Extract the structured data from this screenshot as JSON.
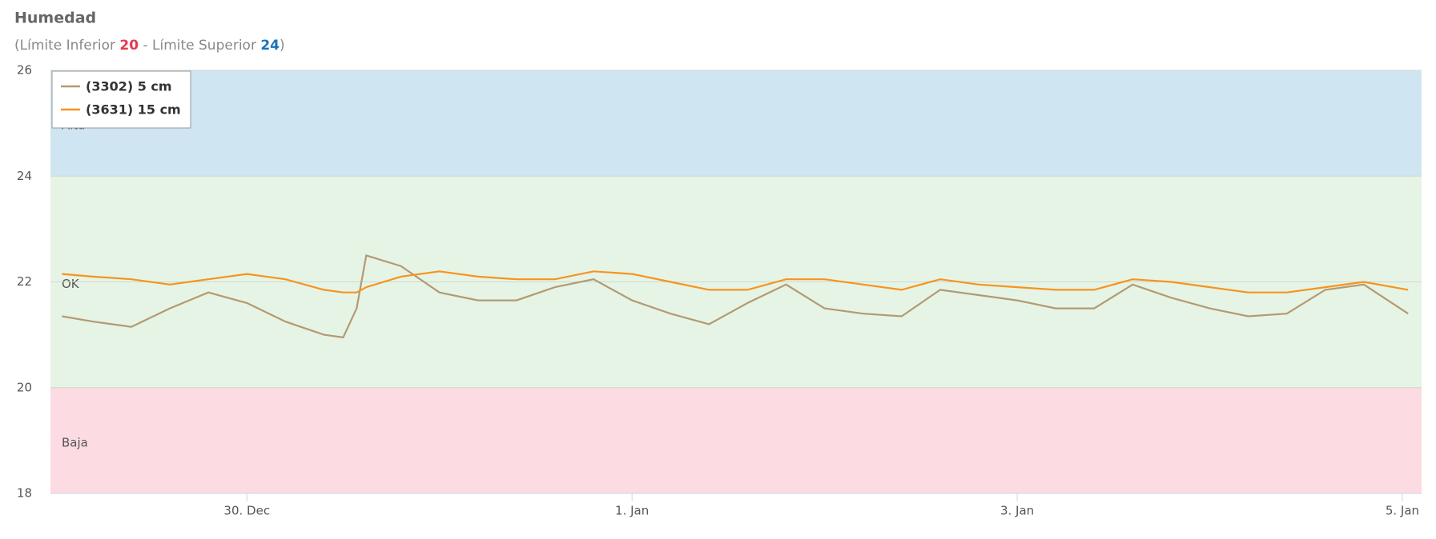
{
  "chart_data": {
    "type": "line",
    "title": "Humedad",
    "subtitle": {
      "prefix": "(Límite Inferior",
      "lower": 20,
      "separator": "- Límite Superior",
      "upper": 24,
      "suffix": ")",
      "lower_color": "#e8384f",
      "upper_color": "#1a73b8"
    },
    "x": [
      -0.96,
      -0.8,
      -0.6,
      -0.4,
      -0.2,
      0,
      0.2,
      0.4,
      0.5,
      0.57,
      0.62,
      0.8,
      1.0,
      1.2,
      1.4,
      1.6,
      1.8,
      2.0,
      2.2,
      2.4,
      2.6,
      2.8,
      3.0,
      3.2,
      3.4,
      3.6,
      3.8,
      4.0,
      4.2,
      4.4,
      4.6,
      4.8,
      5.0,
      5.2,
      5.4,
      5.6,
      5.8,
      6.03
    ],
    "series": [
      {
        "name": "(3302) 5 cm",
        "color": "#b39a72",
        "values": [
          21.35,
          21.25,
          21.15,
          21.5,
          21.8,
          21.6,
          21.25,
          21.0,
          20.95,
          21.5,
          22.5,
          22.3,
          21.8,
          21.65,
          21.65,
          21.9,
          22.05,
          21.65,
          21.4,
          21.2,
          21.6,
          21.95,
          21.5,
          21.4,
          21.35,
          21.85,
          21.75,
          21.65,
          21.5,
          21.5,
          21.95,
          21.7,
          21.5,
          21.35,
          21.4,
          21.85,
          21.95,
          21.4
        ]
      },
      {
        "name": "(3631) 15 cm",
        "color": "#f7931e",
        "values": [
          22.15,
          22.1,
          22.05,
          21.95,
          22.05,
          22.15,
          22.05,
          21.85,
          21.8,
          21.8,
          21.9,
          22.1,
          22.2,
          22.1,
          22.05,
          22.05,
          22.2,
          22.15,
          22.0,
          21.85,
          21.85,
          22.05,
          22.05,
          21.95,
          21.85,
          22.05,
          21.95,
          21.9,
          21.85,
          21.85,
          22.05,
          22.0,
          21.9,
          21.8,
          21.8,
          21.9,
          22.0,
          21.85
        ]
      }
    ],
    "bands": [
      {
        "from": 24,
        "to": 26,
        "label": "Alta",
        "color": "#cfe5f1"
      },
      {
        "from": 20,
        "to": 24,
        "label": "OK",
        "color": "#e6f4e5"
      },
      {
        "from": 18,
        "to": 20,
        "label": "Baja",
        "color": "#fcdbe2"
      }
    ],
    "xlim": [
      -1.02,
      6.1
    ],
    "xticks": [
      {
        "value": 0,
        "label": "30. Dec"
      },
      {
        "value": 2,
        "label": "1. Jan"
      },
      {
        "value": 4,
        "label": "3. Jan"
      },
      {
        "value": 6,
        "label": "5. Jan"
      }
    ],
    "ylim": [
      18,
      26
    ],
    "yticks": [
      18,
      20,
      22,
      24,
      26
    ],
    "grid": true,
    "legend": "top-left"
  }
}
